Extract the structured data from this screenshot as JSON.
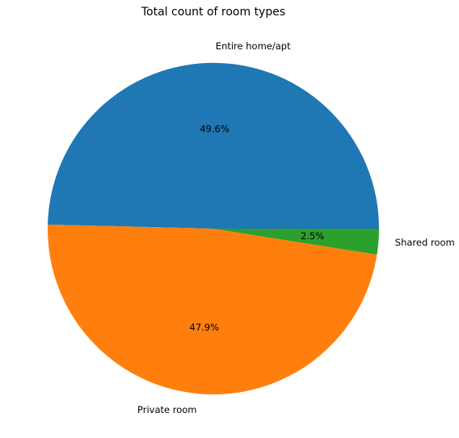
{
  "chart_data": {
    "type": "pie",
    "title": "Total count of room types",
    "categories": [
      "Entire home/apt",
      "Private room",
      "Shared room"
    ],
    "values": [
      49.6,
      47.9,
      2.5
    ],
    "percent_labels": [
      "49.6%",
      "47.9%",
      "2.5%"
    ],
    "colors": [
      "#1f77b4",
      "#ff7f0e",
      "#2ca02c"
    ],
    "start_angle_deg": 0,
    "direction": "counterclockwise",
    "legend": "none"
  }
}
